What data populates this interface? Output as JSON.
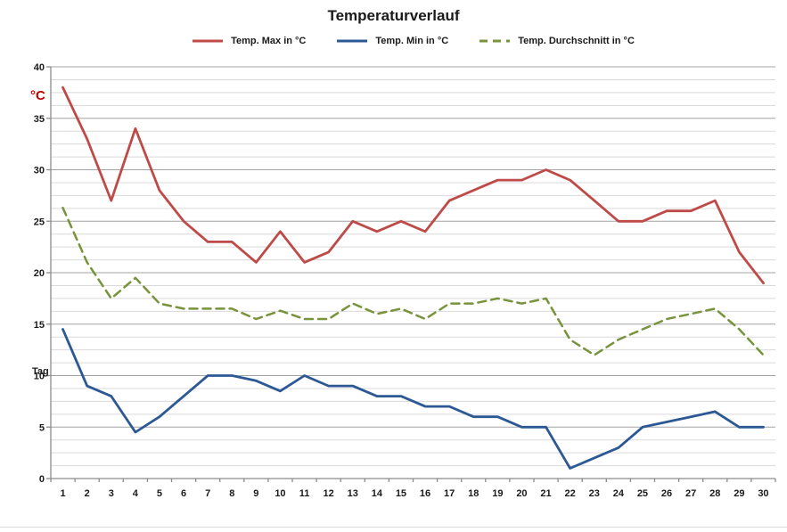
{
  "title": "Temperaturverlauf",
  "colors": {
    "background": "#ffffff",
    "text": "#1a1a1a",
    "grid_minor": "#d9d9d9",
    "grid_major": "#a3a3a3",
    "axis": "#8c8c8c",
    "y_axis_title": "#c00000",
    "temp_max": "#be4b48",
    "temp_min": "#2c5894",
    "temp_avg": "#78933c"
  },
  "chart_data": {
    "type": "line",
    "title": "Temperaturverlauf",
    "xlabel": "Tag",
    "ylabel": "°C",
    "ylim": [
      0,
      40
    ],
    "y_major_unit": 5,
    "y_minor_unit": 1.25,
    "y_ticks": [
      0,
      5,
      10,
      15,
      20,
      25,
      30,
      35,
      40
    ],
    "grid": "horizontal major + minor, no vertical",
    "legend_position": "top",
    "x": [
      1,
      2,
      3,
      4,
      5,
      6,
      7,
      8,
      9,
      10,
      11,
      12,
      13,
      14,
      15,
      16,
      17,
      18,
      19,
      20,
      21,
      22,
      23,
      24,
      25,
      26,
      27,
      28,
      29,
      30
    ],
    "series": [
      {
        "name": "Temp. Max in °C",
        "color": "#be4b48",
        "style": "solid",
        "values": [
          38,
          33,
          27,
          34,
          28,
          25,
          23,
          23,
          21,
          24,
          21,
          22,
          25,
          24,
          25,
          24,
          27,
          28,
          29,
          29,
          30,
          29,
          27,
          25,
          25,
          26,
          26,
          27,
          22,
          19
        ]
      },
      {
        "name": "Temp. Min in °C",
        "color": "#2c5894",
        "style": "solid",
        "values": [
          14.5,
          9,
          8,
          4.5,
          6,
          8,
          10,
          10,
          9.5,
          8.5,
          10,
          9,
          9,
          8,
          8,
          7,
          7,
          6,
          6,
          5,
          5,
          1,
          2,
          3,
          5,
          5.5,
          6,
          6.5,
          5,
          5
        ]
      },
      {
        "name": "Temp. Durchschnitt in °C",
        "color": "#78933c",
        "style": "dashed",
        "values": [
          26.3,
          21,
          17.5,
          19.5,
          17,
          16.5,
          16.5,
          16.5,
          15.5,
          16.3,
          15.5,
          15.5,
          17,
          16,
          16.5,
          15.5,
          17,
          17,
          17.5,
          17,
          17.5,
          13.5,
          12,
          13.5,
          14.5,
          15.5,
          16,
          16.5,
          14.5,
          12
        ]
      }
    ]
  }
}
